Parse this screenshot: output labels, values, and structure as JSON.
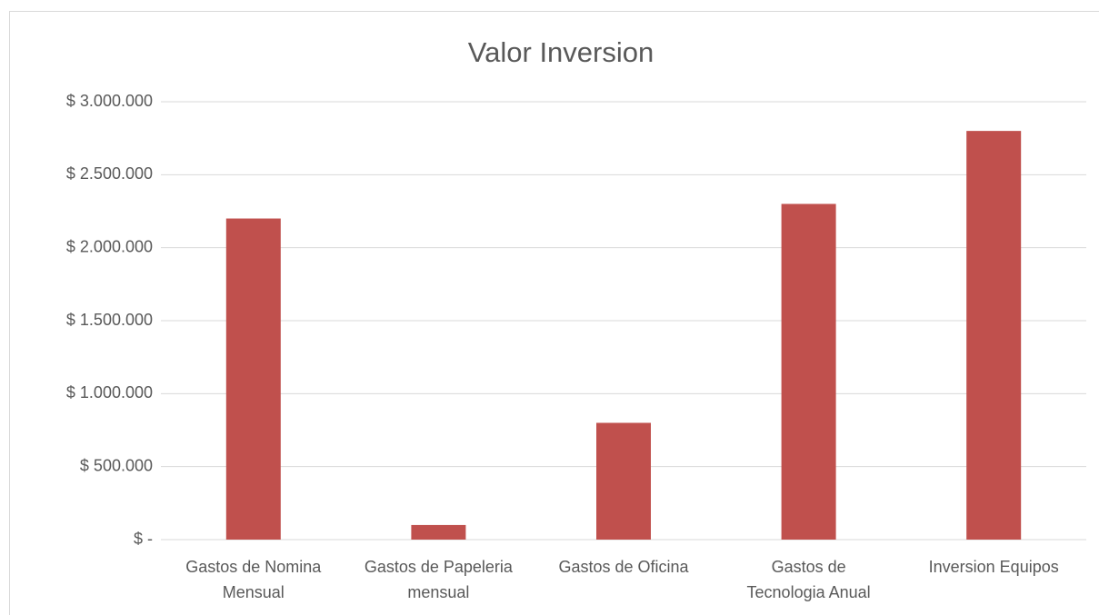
{
  "chart_data": {
    "type": "bar",
    "title": "Valor Inversion",
    "categories": [
      "Gastos de Nomina\nMensual",
      "Gastos de Papeleria\nmensual",
      "Gastos de Oficina",
      "Gastos de\nTecnologia Anual",
      "Inversion Equipos"
    ],
    "values": [
      2200000,
      100000,
      800000,
      2300000,
      2800000
    ],
    "color": "#c0504d",
    "ylim": [
      0,
      3000000
    ],
    "yticks": [
      {
        "value": 0,
        "label": "$ -"
      },
      {
        "value": 500000,
        "label": "$ 500.000"
      },
      {
        "value": 1000000,
        "label": "$ 1.000.000"
      },
      {
        "value": 1500000,
        "label": "$ 1.500.000"
      },
      {
        "value": 2000000,
        "label": "$ 2.000.000"
      },
      {
        "value": 2500000,
        "label": "$ 2.500.000"
      },
      {
        "value": 3000000,
        "label": "$ 3.000.000"
      }
    ],
    "grid": true
  }
}
